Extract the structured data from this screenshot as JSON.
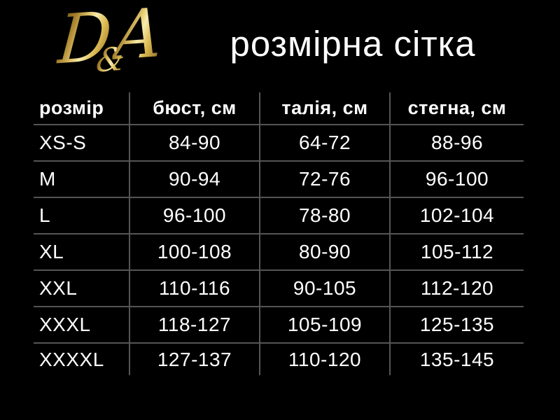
{
  "brand": {
    "logo": {
      "d": "D",
      "amp": "&",
      "a": "A"
    },
    "title": "розмірна сітка"
  },
  "colors": {
    "background": "#000000",
    "text": "#ffffff",
    "grid_line": "#555555",
    "gold_dark": "#6e4f16",
    "gold_light": "#f6ecae"
  },
  "chart_data": {
    "type": "table",
    "title": "розмірна сітка",
    "columns": [
      "розмір",
      "бюст, см",
      "талія, см",
      "стегна, см"
    ],
    "rows": [
      [
        "XS-S",
        "84-90",
        "64-72",
        "88-96"
      ],
      [
        "M",
        "90-94",
        "72-76",
        "96-100"
      ],
      [
        "L",
        "96-100",
        "78-80",
        "102-104"
      ],
      [
        "XL",
        "100-108",
        "80-90",
        "105-112"
      ],
      [
        "XXL",
        "110-116",
        "90-105",
        "112-120"
      ],
      [
        "XXXL",
        "118-127",
        "105-109",
        "125-135"
      ],
      [
        "XXXXL",
        "127-137",
        "110-120",
        "135-145"
      ]
    ]
  }
}
